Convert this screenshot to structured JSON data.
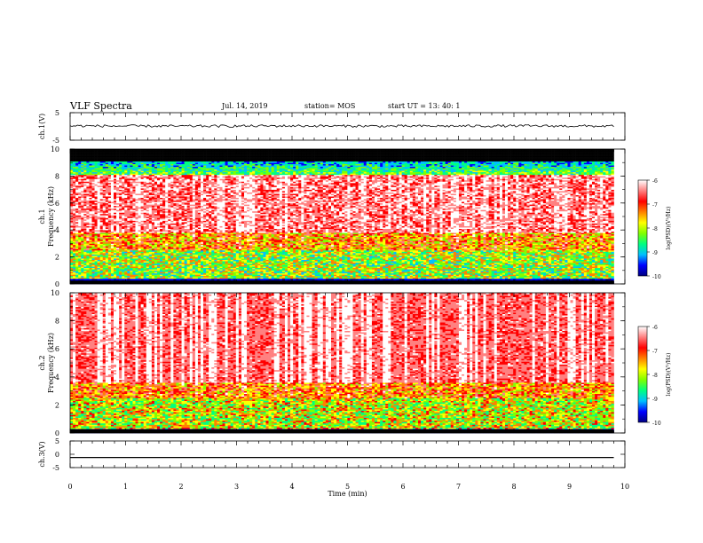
{
  "header": {
    "title": "VLF Spectra",
    "date": "Jul. 14, 2019",
    "station": "station= MOS",
    "start": "start UT = 13: 40: 1"
  },
  "colorbar": {
    "ticks": [
      "-6",
      "-7",
      "-8",
      "-9",
      "-10"
    ],
    "label": "log(PSD)(V²/Hz)",
    "colors": [
      "#000080",
      "#0000ff",
      "#00c0ff",
      "#00ff80",
      "#80ff00",
      "#ffff00",
      "#ff8000",
      "#ff0000",
      "#ff8080",
      "#ffffff"
    ]
  },
  "chart_data": [
    {
      "type": "line",
      "ylabel": "ch.1(V)",
      "ylim": [
        -5,
        5
      ],
      "y_ticks": [
        "5",
        "-5"
      ],
      "x": [
        0,
        2,
        4,
        6,
        8,
        9.8
      ],
      "values": [
        0.2,
        0.1,
        0.2,
        0.1,
        0.2,
        0.1
      ]
    },
    {
      "type": "heatmap",
      "ylabel": "ch.1",
      "ylabel2": "Frequency (kHz)",
      "ylim": [
        0,
        10
      ],
      "y_ticks": [
        "0",
        "2",
        "4",
        "6",
        "8",
        "10"
      ],
      "x_range": [
        0,
        9.8
      ],
      "z_range": [
        -10,
        -6
      ]
    },
    {
      "type": "heatmap",
      "ylabel": "ch.2",
      "ylabel2": "Frequency (kHz)",
      "ylim": [
        0,
        10
      ],
      "y_ticks": [
        "0",
        "2",
        "4",
        "6",
        "8",
        "10"
      ],
      "x_range": [
        0,
        9.8
      ],
      "z_range": [
        -10,
        -6
      ]
    },
    {
      "type": "line",
      "ylabel": "ch.3(V)",
      "ylim": [
        -5,
        5
      ],
      "y_ticks": [
        "5",
        "0",
        "-5"
      ],
      "x": [
        0,
        9.8
      ],
      "values": [
        -1.2,
        -1.2
      ]
    }
  ],
  "xaxis": {
    "label": "Time (min)",
    "ticks": [
      "0",
      "1",
      "2",
      "3",
      "4",
      "5",
      "6",
      "7",
      "8",
      "9",
      "10"
    ],
    "xlim": [
      0,
      10
    ]
  }
}
